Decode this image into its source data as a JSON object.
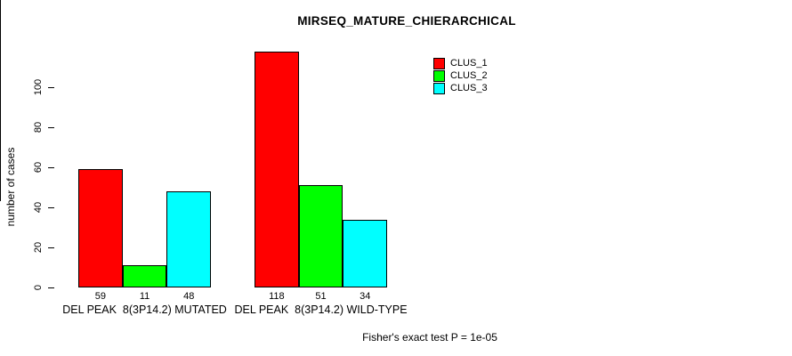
{
  "title": "MIRSEQ_MATURE_CHIERARCHICAL",
  "y_axis": {
    "label": "number of cases",
    "ticks": [
      0,
      20,
      40,
      60,
      80,
      100
    ]
  },
  "legend": {
    "items": [
      {
        "label": "CLUS_1",
        "color": "#FF0000"
      },
      {
        "label": "CLUS_2",
        "color": "#00FF00"
      },
      {
        "label": "CLUS_3",
        "color": "#00FFFF"
      }
    ]
  },
  "footer": {
    "text": "Fisher's exact test P = 1e-05"
  },
  "chart_data": {
    "type": "bar",
    "title": "MIRSEQ_MATURE_CHIERARCHICAL",
    "categories": [
      "DEL PEAK  8(3P14.2) MUTATED",
      "DEL PEAK  8(3P14.2) WILD-TYPE"
    ],
    "series": [
      {
        "name": "CLUS_1",
        "color": "#FF0000",
        "values": [
          59,
          118
        ]
      },
      {
        "name": "CLUS_2",
        "color": "#00FF00",
        "values": [
          11,
          51
        ]
      },
      {
        "name": "CLUS_3",
        "color": "#00FFFF",
        "values": [
          48,
          34
        ]
      }
    ],
    "bar_value_labels": [
      [
        59,
        11,
        48
      ],
      [
        118,
        51,
        34
      ]
    ],
    "xlabel": "",
    "ylabel": "number of cases",
    "ylim": [
      0,
      100
    ],
    "yticks": [
      0,
      20,
      40,
      60,
      80,
      100
    ],
    "grid": false,
    "legend_position": "top-right",
    "bar_border_color": "#000000",
    "annotation": "Fisher's exact test P = 1e-05"
  }
}
